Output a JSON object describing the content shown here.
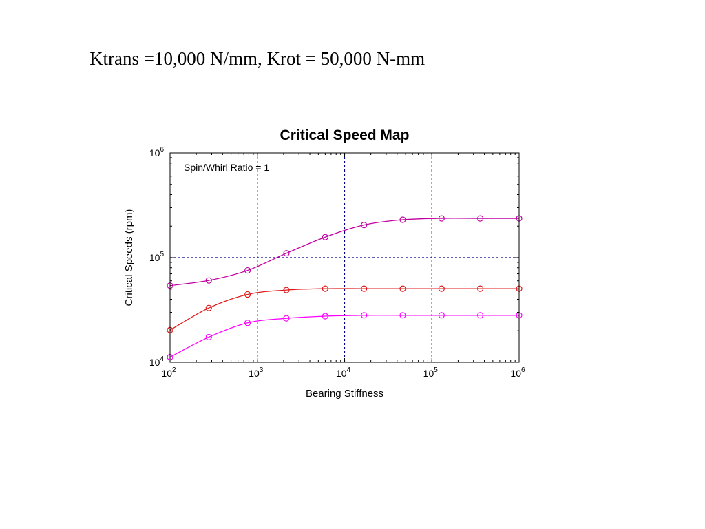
{
  "slide": {
    "heading": "Ktrans =10,000 N/mm, Krot = 50,000 N-mm"
  },
  "chart_data": {
    "type": "line",
    "title": "Critical Speed Map",
    "xlabel": "Bearing Stiffness",
    "ylabel": "Critical Speeds (rpm)",
    "xscale": "log",
    "yscale": "log",
    "xlim": [
      100,
      1000000
    ],
    "ylim": [
      10000,
      1000000
    ],
    "x_ticks": [
      {
        "base": "10",
        "exp": "2",
        "value": 100
      },
      {
        "base": "10",
        "exp": "3",
        "value": 1000
      },
      {
        "base": "10",
        "exp": "4",
        "value": 10000
      },
      {
        "base": "10",
        "exp": "5",
        "value": 100000
      },
      {
        "base": "10",
        "exp": "6",
        "value": 1000000
      }
    ],
    "y_ticks": [
      {
        "base": "10",
        "exp": "4",
        "value": 10000
      },
      {
        "base": "10",
        "exp": "5",
        "value": 100000
      },
      {
        "base": "10",
        "exp": "6",
        "value": 1000000
      }
    ],
    "grid": {
      "x": [
        1000,
        10000,
        100000
      ],
      "y": [
        100000
      ],
      "style": "dashed",
      "color": "#00008b"
    },
    "annotation": "Spin/Whirl Ratio = 1",
    "marker": "circle",
    "series": [
      {
        "color": "#c000a0",
        "x": [
          100,
          278,
          774,
          2154,
          5995,
          16681,
          46416,
          129155,
          359381,
          1000000
        ],
        "y": [
          54000,
          60500,
          75500,
          110000,
          157000,
          205000,
          230000,
          237000,
          237000,
          237000
        ]
      },
      {
        "color": "#e01818",
        "x": [
          100,
          278,
          774,
          2154,
          5995,
          16681,
          46416,
          129155,
          359381,
          1000000
        ],
        "y": [
          20300,
          33000,
          44500,
          49000,
          50500,
          50500,
          50500,
          50500,
          50500,
          50500
        ]
      },
      {
        "color": "#ff00ff",
        "x": [
          100,
          278,
          774,
          2154,
          5995,
          16681,
          46416,
          129155,
          359381,
          1000000
        ],
        "y": [
          11200,
          17400,
          23800,
          26300,
          27600,
          28100,
          28100,
          28100,
          28100,
          28100
        ]
      }
    ]
  }
}
